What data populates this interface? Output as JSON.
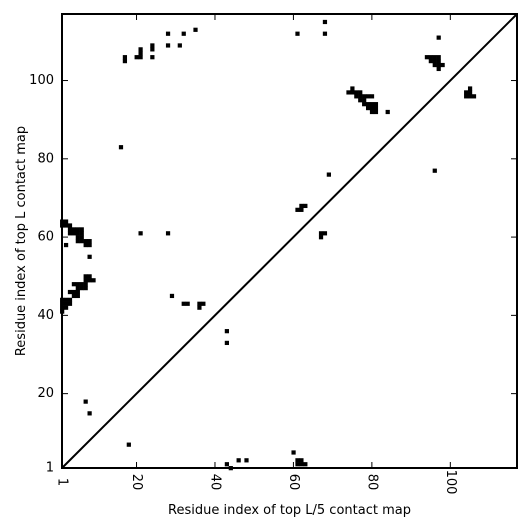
{
  "chart_data": {
    "type": "scatter",
    "title": "",
    "xlabel": "Residue index of top L/5 contact map",
    "ylabel": "Residue index of top L contact map",
    "xlim": [
      1,
      117
    ],
    "ylim": [
      1,
      117
    ],
    "xticks": [
      1,
      20,
      40,
      60,
      80,
      100
    ],
    "yticks": [
      1,
      20,
      40,
      60,
      80,
      100
    ],
    "grid": false,
    "diagonal": true,
    "marker_color": "#000000",
    "points": [
      [
        1,
        41
      ],
      [
        1,
        42
      ],
      [
        1,
        43
      ],
      [
        1,
        44
      ],
      [
        2,
        42
      ],
      [
        2,
        43
      ],
      [
        2,
        44
      ],
      [
        3,
        43
      ],
      [
        3,
        44
      ],
      [
        3,
        46
      ],
      [
        4,
        46
      ],
      [
        5,
        46
      ],
      [
        4,
        45
      ],
      [
        5,
        45
      ],
      [
        4,
        48
      ],
      [
        5,
        48
      ],
      [
        6,
        48
      ],
      [
        5,
        47
      ],
      [
        6,
        47
      ],
      [
        7,
        47
      ],
      [
        7,
        48
      ],
      [
        7,
        49
      ],
      [
        7,
        50
      ],
      [
        8,
        49
      ],
      [
        8,
        50
      ],
      [
        9,
        49
      ],
      [
        8,
        55
      ],
      [
        2,
        58
      ],
      [
        7,
        58
      ],
      [
        7,
        59
      ],
      [
        8,
        58
      ],
      [
        8,
        59
      ],
      [
        1,
        63
      ],
      [
        1,
        64
      ],
      [
        2,
        63
      ],
      [
        2,
        64
      ],
      [
        3,
        63
      ],
      [
        3,
        61
      ],
      [
        3,
        62
      ],
      [
        4,
        61
      ],
      [
        4,
        62
      ],
      [
        5,
        61
      ],
      [
        5,
        62
      ],
      [
        6,
        61
      ],
      [
        6,
        62
      ],
      [
        5,
        60
      ],
      [
        6,
        60
      ],
      [
        6,
        59
      ],
      [
        5,
        59
      ],
      [
        7,
        18
      ],
      [
        8,
        15
      ],
      [
        18,
        7
      ],
      [
        16,
        83
      ],
      [
        17,
        105
      ],
      [
        17,
        106
      ],
      [
        20,
        106
      ],
      [
        21,
        106
      ],
      [
        21,
        107
      ],
      [
        21,
        108
      ],
      [
        24,
        106
      ],
      [
        24,
        108
      ],
      [
        24,
        109
      ],
      [
        21,
        61
      ],
      [
        28,
        61
      ],
      [
        28,
        109
      ],
      [
        28,
        112
      ],
      [
        31,
        109
      ],
      [
        32,
        112
      ],
      [
        35,
        113
      ],
      [
        29,
        45
      ],
      [
        32,
        43
      ],
      [
        33,
        43
      ],
      [
        36,
        42
      ],
      [
        36,
        43
      ],
      [
        37,
        43
      ],
      [
        43,
        36
      ],
      [
        43,
        33
      ],
      [
        43,
        2
      ],
      [
        44,
        1
      ],
      [
        46,
        3
      ],
      [
        48,
        3
      ],
      [
        60,
        5
      ],
      [
        61,
        2
      ],
      [
        61,
        3
      ],
      [
        62,
        2
      ],
      [
        62,
        3
      ],
      [
        63,
        2
      ],
      [
        61,
        112
      ],
      [
        61,
        67
      ],
      [
        62,
        67
      ],
      [
        62,
        68
      ],
      [
        63,
        68
      ],
      [
        67,
        60
      ],
      [
        67,
        61
      ],
      [
        68,
        61
      ],
      [
        68,
        112
      ],
      [
        68,
        115
      ],
      [
        69,
        76
      ],
      [
        74,
        97
      ],
      [
        75,
        97
      ],
      [
        75,
        98
      ],
      [
        76,
        96
      ],
      [
        76,
        97
      ],
      [
        77,
        95
      ],
      [
        77,
        96
      ],
      [
        77,
        97
      ],
      [
        78,
        95
      ],
      [
        78,
        96
      ],
      [
        78,
        94
      ],
      [
        79,
        96
      ],
      [
        79,
        94
      ],
      [
        79,
        93
      ],
      [
        80,
        96
      ],
      [
        80,
        94
      ],
      [
        80,
        93
      ],
      [
        81,
        94
      ],
      [
        81,
        93
      ],
      [
        81,
        92
      ],
      [
        80,
        92
      ],
      [
        84,
        92
      ],
      [
        94,
        106
      ],
      [
        95,
        105
      ],
      [
        95,
        106
      ],
      [
        96,
        104
      ],
      [
        96,
        105
      ],
      [
        96,
        106
      ],
      [
        97,
        103
      ],
      [
        97,
        104
      ],
      [
        97,
        105
      ],
      [
        97,
        106
      ],
      [
        98,
        104
      ],
      [
        97,
        111
      ],
      [
        96,
        77
      ],
      [
        104,
        96
      ],
      [
        104,
        97
      ],
      [
        105,
        96
      ],
      [
        105,
        97
      ],
      [
        105,
        98
      ],
      [
        106,
        96
      ]
    ]
  }
}
